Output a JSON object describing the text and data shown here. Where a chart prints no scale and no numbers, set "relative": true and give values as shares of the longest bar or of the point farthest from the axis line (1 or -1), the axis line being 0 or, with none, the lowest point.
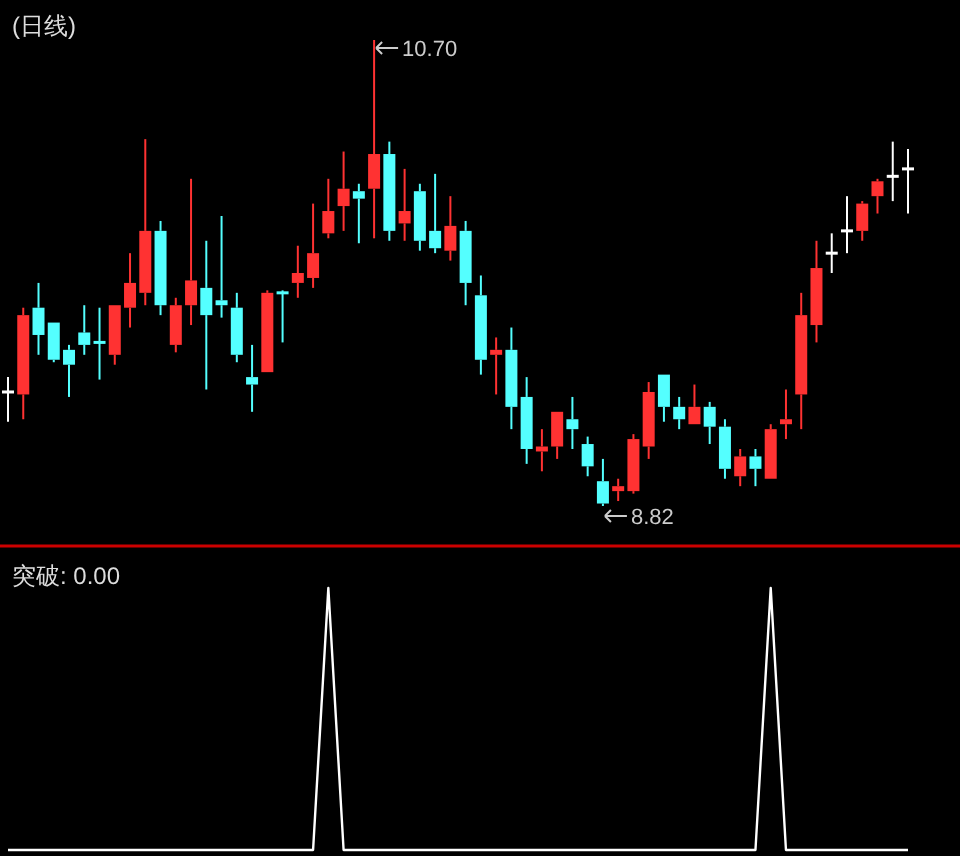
{
  "chart_data": [
    {
      "type": "candlestick",
      "title": "(日线)",
      "categories": [
        null,
        null,
        null,
        null,
        null,
        null,
        null,
        null,
        null,
        null,
        null,
        null,
        null,
        null,
        null,
        null,
        null,
        null,
        null,
        null,
        null,
        null,
        null,
        null,
        null,
        null,
        null,
        null,
        null,
        null,
        null,
        null,
        null,
        null,
        null,
        null,
        null,
        null,
        null,
        null,
        null,
        null,
        null,
        null,
        null,
        null,
        null,
        null,
        null,
        null,
        null,
        null,
        null,
        null,
        null,
        null,
        null,
        null,
        null,
        null
      ],
      "ohlc": [
        [
          9.28,
          9.34,
          9.16,
          9.28
        ],
        [
          9.27,
          9.62,
          9.17,
          9.59
        ],
        [
          9.62,
          9.72,
          9.43,
          9.51
        ],
        [
          9.56,
          9.56,
          9.4,
          9.41
        ],
        [
          9.45,
          9.47,
          9.26,
          9.39
        ],
        [
          9.52,
          9.63,
          9.43,
          9.47
        ],
        [
          9.48,
          9.62,
          9.33,
          9.48
        ],
        [
          9.43,
          9.63,
          9.39,
          9.63
        ],
        [
          9.62,
          9.84,
          9.54,
          9.72
        ],
        [
          9.68,
          10.3,
          9.63,
          9.93
        ],
        [
          9.93,
          9.97,
          9.59,
          9.63
        ],
        [
          9.47,
          9.66,
          9.44,
          9.63
        ],
        [
          9.63,
          10.14,
          9.55,
          9.73
        ],
        [
          9.7,
          9.89,
          9.29,
          9.59
        ],
        [
          9.65,
          9.99,
          9.58,
          9.63
        ],
        [
          9.62,
          9.68,
          9.4,
          9.43
        ],
        [
          9.34,
          9.47,
          9.2,
          9.31
        ],
        [
          9.36,
          9.69,
          9.36,
          9.68
        ],
        [
          9.68,
          9.69,
          9.48,
          9.68
        ],
        [
          9.72,
          9.87,
          9.66,
          9.76
        ],
        [
          9.74,
          10.04,
          9.7,
          9.84
        ],
        [
          9.92,
          10.14,
          9.9,
          10.01
        ],
        [
          10.03,
          10.25,
          9.93,
          10.1
        ],
        [
          10.09,
          10.12,
          9.88,
          10.06
        ],
        [
          10.1,
          10.7,
          9.9,
          10.24
        ],
        [
          10.24,
          10.29,
          9.89,
          9.93
        ],
        [
          9.96,
          10.18,
          9.89,
          10.01
        ],
        [
          10.09,
          10.12,
          9.85,
          9.89
        ],
        [
          9.93,
          10.16,
          9.84,
          9.86
        ],
        [
          9.85,
          10.07,
          9.81,
          9.95
        ],
        [
          9.93,
          9.97,
          9.63,
          9.72
        ],
        [
          9.67,
          9.75,
          9.35,
          9.41
        ],
        [
          9.43,
          9.5,
          9.27,
          9.45
        ],
        [
          9.45,
          9.54,
          9.13,
          9.22
        ],
        [
          9.26,
          9.34,
          8.99,
          9.05
        ],
        [
          9.04,
          9.13,
          8.96,
          9.06
        ],
        [
          9.06,
          9.2,
          9.01,
          9.2
        ],
        [
          9.17,
          9.26,
          9.05,
          9.13
        ],
        [
          9.07,
          9.1,
          8.94,
          8.98
        ],
        [
          8.92,
          9.01,
          8.82,
          8.83
        ],
        [
          8.88,
          8.93,
          8.84,
          8.9
        ],
        [
          8.88,
          9.11,
          8.87,
          9.09
        ],
        [
          9.06,
          9.32,
          9.01,
          9.28
        ],
        [
          9.35,
          9.35,
          9.16,
          9.22
        ],
        [
          9.22,
          9.26,
          9.13,
          9.17
        ],
        [
          9.15,
          9.31,
          9.15,
          9.22
        ],
        [
          9.22,
          9.24,
          9.07,
          9.14
        ],
        [
          9.14,
          9.17,
          8.93,
          8.97
        ],
        [
          8.94,
          9.05,
          8.9,
          9.02
        ],
        [
          9.02,
          9.05,
          8.9,
          8.97
        ],
        [
          8.93,
          9.15,
          8.93,
          9.13
        ],
        [
          9.15,
          9.29,
          9.09,
          9.17
        ],
        [
          9.27,
          9.68,
          9.13,
          9.59
        ],
        [
          9.55,
          9.89,
          9.48,
          9.78
        ],
        [
          9.84,
          9.92,
          9.76,
          9.84
        ],
        [
          9.93,
          10.07,
          9.84,
          9.93
        ],
        [
          9.93,
          10.05,
          9.89,
          10.04
        ],
        [
          10.07,
          10.14,
          10.0,
          10.13
        ],
        [
          10.15,
          10.29,
          10.05,
          10.15
        ],
        [
          10.18,
          10.26,
          10.0,
          10.18
        ]
      ],
      "colors": [
        "#ffffff",
        "#ff3232",
        "#54ffff",
        "#54ffff",
        "#54ffff",
        "#54ffff",
        "#54ffff",
        "#ff3232",
        "#ff3232",
        "#ff3232",
        "#54ffff",
        "#ff3232",
        "#ff3232",
        "#54ffff",
        "#54ffff",
        "#54ffff",
        "#54ffff",
        "#ff3232",
        "#54ffff",
        "#ff3232",
        "#ff3232",
        "#ff3232",
        "#ff3232",
        "#54ffff",
        "#ff3232",
        "#54ffff",
        "#ff3232",
        "#54ffff",
        "#54ffff",
        "#ff3232",
        "#54ffff",
        "#54ffff",
        "#ff3232",
        "#54ffff",
        "#54ffff",
        "#ff3232",
        "#ff3232",
        "#54ffff",
        "#54ffff",
        "#54ffff",
        "#ff3232",
        "#ff3232",
        "#ff3232",
        "#54ffff",
        "#54ffff",
        "#ff3232",
        "#54ffff",
        "#54ffff",
        "#ff3232",
        "#54ffff",
        "#ff3232",
        "#ff3232",
        "#ff3232",
        "#ff3232",
        "#ffffff",
        "#ffffff",
        "#ff3232",
        "#ff3232",
        "#ffffff",
        "#ffffff"
      ],
      "annotations": [
        "10.70",
        "8.82"
      ]
    },
    {
      "type": "line",
      "title": "突破: 0.00",
      "relative": true,
      "categories": [
        null,
        null,
        null,
        null,
        null,
        null,
        null,
        null,
        null,
        null,
        null,
        null,
        null,
        null,
        null,
        null,
        null,
        null,
        null,
        null,
        null,
        null,
        null,
        null,
        null,
        null,
        null,
        null,
        null,
        null,
        null,
        null,
        null,
        null,
        null,
        null,
        null,
        null,
        null,
        null,
        null,
        null,
        null,
        null,
        null,
        null,
        null,
        null,
        null,
        null,
        null,
        null,
        null,
        null,
        null,
        null,
        null,
        null,
        null,
        null
      ],
      "series": [
        {
          "color": "#ffffff",
          "values": [
            0,
            0,
            0,
            0,
            0,
            0,
            0,
            0,
            0,
            0,
            0,
            0,
            0,
            0,
            0,
            0,
            0,
            0,
            0,
            0,
            0,
            1,
            0,
            0,
            0,
            0,
            0,
            0,
            0,
            0,
            0,
            0,
            0,
            0,
            0,
            0,
            0,
            0,
            0,
            0,
            0,
            0,
            0,
            0,
            0,
            0,
            0,
            0,
            0,
            0,
            1,
            0,
            0,
            0,
            0,
            0,
            0,
            0,
            0,
            0
          ]
        }
      ]
    }
  ]
}
